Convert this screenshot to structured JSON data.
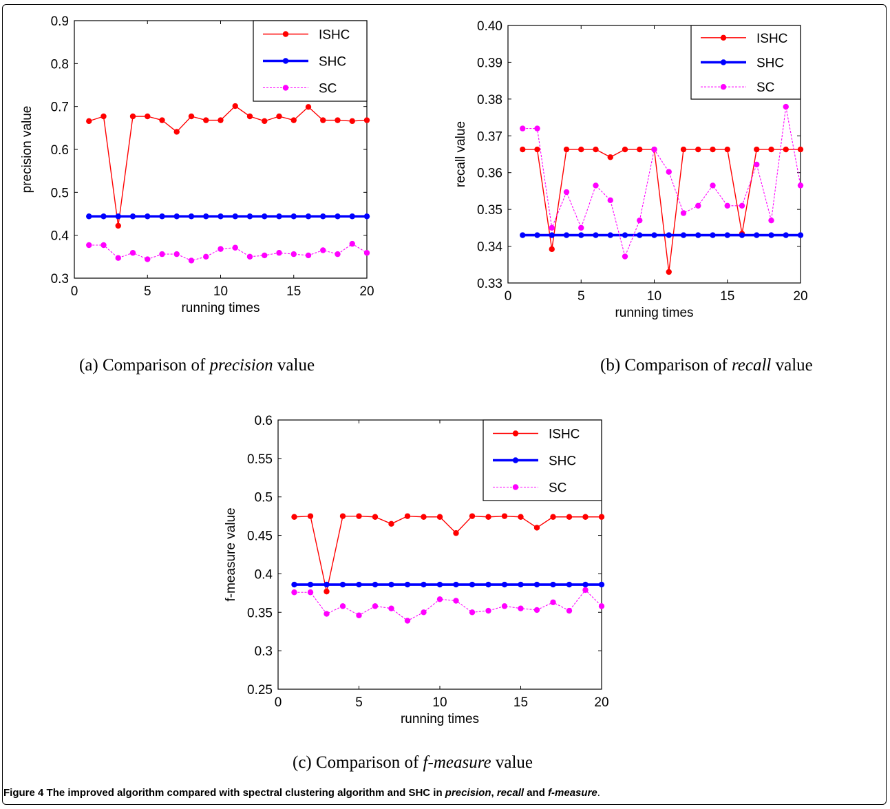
{
  "chart_data": [
    {
      "type": "line",
      "xlabel": "running times",
      "ylabel": "precision value",
      "xlim": [
        0,
        20
      ],
      "ylim": [
        0.3,
        0.9
      ],
      "xticks": [
        0,
        5,
        10,
        15,
        20
      ],
      "yticks": [
        0.3,
        0.4,
        0.5,
        0.6,
        0.7,
        0.8,
        0.9
      ],
      "ytick_decimals": 1,
      "legend_position": "top-right",
      "x": [
        1,
        2,
        3,
        4,
        5,
        6,
        7,
        8,
        9,
        10,
        11,
        12,
        13,
        14,
        15,
        16,
        17,
        18,
        19,
        20
      ],
      "series": [
        {
          "name": "ISHC",
          "color": "#ff0000",
          "style": "solid-thin",
          "values": [
            0.666,
            0.677,
            0.422,
            0.677,
            0.677,
            0.668,
            0.641,
            0.677,
            0.668,
            0.668,
            0.701,
            0.677,
            0.666,
            0.677,
            0.668,
            0.699,
            0.668,
            0.668,
            0.666,
            0.668
          ]
        },
        {
          "name": "SHC",
          "color": "#0000ff",
          "style": "solid-thick",
          "values": [
            0.444,
            0.444,
            0.444,
            0.444,
            0.444,
            0.444,
            0.444,
            0.444,
            0.444,
            0.444,
            0.444,
            0.444,
            0.444,
            0.444,
            0.444,
            0.444,
            0.444,
            0.444,
            0.444,
            0.444
          ]
        },
        {
          "name": "SC",
          "color": "#ff00ff",
          "style": "dotted-thin",
          "values": [
            0.377,
            0.377,
            0.347,
            0.359,
            0.344,
            0.356,
            0.356,
            0.341,
            0.35,
            0.368,
            0.371,
            0.35,
            0.353,
            0.359,
            0.356,
            0.353,
            0.365,
            0.356,
            0.38,
            0.359
          ]
        }
      ]
    },
    {
      "type": "line",
      "xlabel": "running times",
      "ylabel": "recall value",
      "xlim": [
        0,
        20
      ],
      "ylim": [
        0.33,
        0.4
      ],
      "xticks": [
        0,
        5,
        10,
        15,
        20
      ],
      "yticks": [
        0.33,
        0.34,
        0.35,
        0.36,
        0.37,
        0.38,
        0.39,
        0.4
      ],
      "ytick_decimals": 2,
      "legend_position": "top-right",
      "x": [
        1,
        2,
        3,
        4,
        5,
        6,
        7,
        8,
        9,
        10,
        11,
        12,
        13,
        14,
        15,
        16,
        17,
        18,
        19,
        20
      ],
      "series": [
        {
          "name": "ISHC",
          "color": "#ff0000",
          "style": "solid-thin",
          "values": [
            0.3663,
            0.3663,
            0.3392,
            0.3663,
            0.3663,
            0.3663,
            0.3642,
            0.3663,
            0.3663,
            0.3663,
            0.333,
            0.3663,
            0.3663,
            0.3663,
            0.3663,
            0.3434,
            0.3663,
            0.3663,
            0.3663,
            0.3663
          ]
        },
        {
          "name": "SHC",
          "color": "#0000ff",
          "style": "solid-thick",
          "values": [
            0.343,
            0.343,
            0.343,
            0.343,
            0.343,
            0.343,
            0.343,
            0.343,
            0.343,
            0.343,
            0.343,
            0.343,
            0.343,
            0.343,
            0.343,
            0.343,
            0.343,
            0.343,
            0.343,
            0.343
          ]
        },
        {
          "name": "SC",
          "color": "#ff00ff",
          "style": "dotted-thin",
          "values": [
            0.372,
            0.372,
            0.345,
            0.3547,
            0.345,
            0.3565,
            0.3525,
            0.3372,
            0.347,
            0.3663,
            0.3602,
            0.349,
            0.351,
            0.3565,
            0.351,
            0.351,
            0.3622,
            0.347,
            0.3779,
            0.3565
          ]
        }
      ]
    },
    {
      "type": "line",
      "xlabel": "running times",
      "ylabel": "f-measure value",
      "xlim": [
        0,
        20
      ],
      "ylim": [
        0.25,
        0.6
      ],
      "xticks": [
        0,
        5,
        10,
        15,
        20
      ],
      "yticks": [
        0.25,
        0.3,
        0.35,
        0.4,
        0.45,
        0.5,
        0.55,
        0.6
      ],
      "ytick_decimals": -1,
      "legend_position": "top-right",
      "x": [
        1,
        2,
        3,
        4,
        5,
        6,
        7,
        8,
        9,
        10,
        11,
        12,
        13,
        14,
        15,
        16,
        17,
        18,
        19,
        20
      ],
      "series": [
        {
          "name": "ISHC",
          "color": "#ff0000",
          "style": "solid-thin",
          "values": [
            0.474,
            0.475,
            0.377,
            0.475,
            0.475,
            0.474,
            0.465,
            0.475,
            0.474,
            0.474,
            0.453,
            0.475,
            0.474,
            0.475,
            0.474,
            0.46,
            0.474,
            0.474,
            0.474,
            0.474
          ]
        },
        {
          "name": "SHC",
          "color": "#0000ff",
          "style": "solid-thick",
          "values": [
            0.386,
            0.386,
            0.386,
            0.386,
            0.386,
            0.386,
            0.386,
            0.386,
            0.386,
            0.386,
            0.386,
            0.386,
            0.386,
            0.386,
            0.386,
            0.386,
            0.386,
            0.386,
            0.386,
            0.386
          ]
        },
        {
          "name": "SC",
          "color": "#ff00ff",
          "style": "dotted-thin",
          "values": [
            0.376,
            0.376,
            0.348,
            0.358,
            0.346,
            0.358,
            0.355,
            0.339,
            0.35,
            0.367,
            0.365,
            0.35,
            0.352,
            0.358,
            0.355,
            0.353,
            0.363,
            0.352,
            0.379,
            0.358
          ]
        }
      ]
    }
  ],
  "captions": {
    "a": {
      "prefix": "(a) Comparison of ",
      "emph": "precision",
      "suffix": " value"
    },
    "b": {
      "prefix": "(b) Comparison of ",
      "emph": "recall",
      "suffix": " value"
    },
    "c": {
      "prefix": "(c) Comparison of ",
      "emph": "f-measure",
      "suffix": " value"
    }
  },
  "figure_caption": {
    "label": "Figure 4",
    "text1": " The improved algorithm compared with spectral clustering algorithm and SHC in ",
    "emph1": "precision",
    "sep1": ", ",
    "emph2": "recall",
    "sep2": " and ",
    "emph3": "f-measure",
    "end": "."
  }
}
